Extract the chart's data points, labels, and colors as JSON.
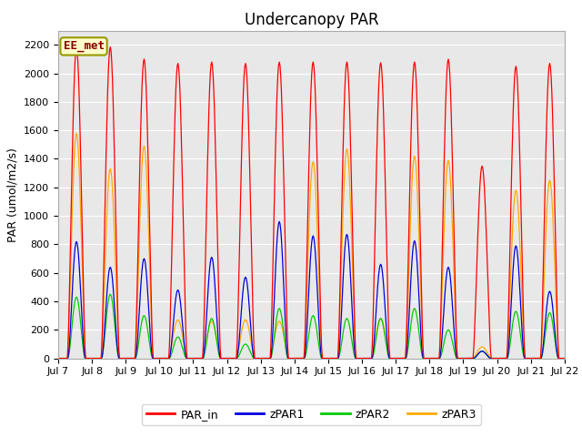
{
  "title": "Undercanopy PAR",
  "ylabel": "PAR (umol/m2/s)",
  "ylim": [
    0,
    2300
  ],
  "yticks": [
    0,
    200,
    400,
    600,
    800,
    1000,
    1200,
    1400,
    1600,
    1800,
    2000,
    2200
  ],
  "xtick_labels": [
    "Jul 7",
    "Jul 8",
    "Jul 9",
    "Jul 10",
    "Jul 11",
    "Jul 12",
    "Jul 13",
    "Jul 14",
    "Jul 15",
    "Jul 16",
    "Jul 17",
    "Jul 18",
    "Jul 19",
    "Jul 20",
    "Jul 21",
    "Jul 22"
  ],
  "color_PAR_in": "#ff0000",
  "color_zPAR1": "#0000dd",
  "color_zPAR2": "#00cc00",
  "color_zPAR3": "#ffaa00",
  "bg_color": "#e8e8e8",
  "legend_label": "EE_met",
  "legend_bg": "#ffffcc",
  "legend_border": "#999900",
  "series_names": [
    "PAR_in",
    "zPAR1",
    "zPAR2",
    "zPAR3"
  ],
  "title_fontsize": 12,
  "label_fontsize": 9,
  "tick_fontsize": 8,
  "par_in_peaks": [
    2180,
    2185,
    2100,
    2070,
    2080,
    2070,
    2080,
    2080,
    2080,
    2075,
    2080,
    2100,
    1350,
    2050,
    2070
  ],
  "zpar1_peaks": [
    820,
    640,
    700,
    480,
    710,
    570,
    960,
    860,
    870,
    660,
    825,
    640,
    50,
    790,
    470
  ],
  "zpar2_peaks": [
    430,
    450,
    300,
    150,
    280,
    100,
    350,
    300,
    280,
    280,
    350,
    200,
    50,
    330,
    320
  ],
  "zpar3_peaks": [
    1580,
    1330,
    1490,
    270,
    260,
    270,
    260,
    1380,
    1470,
    280,
    1420,
    1390,
    80,
    1180,
    1250
  ]
}
